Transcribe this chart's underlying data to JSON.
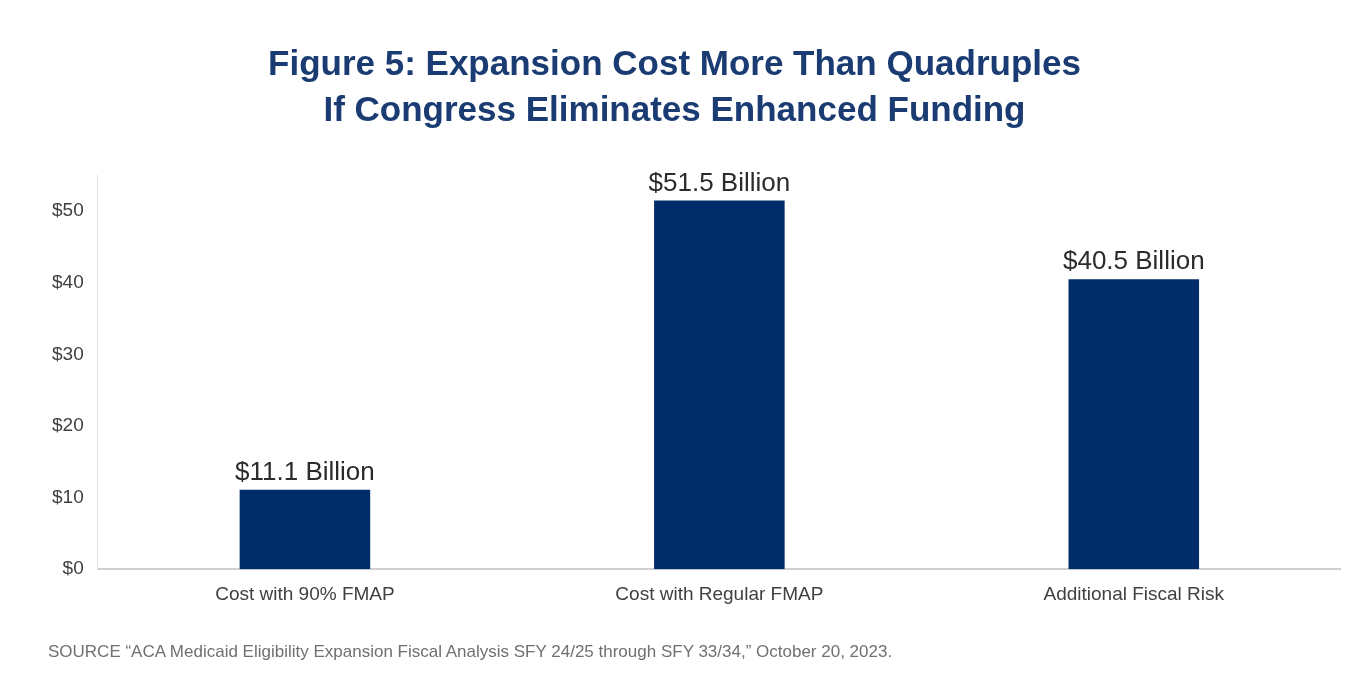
{
  "chart_data": {
    "type": "bar",
    "title": "Figure 5: Expansion Cost More Than Quadruples If Congress Eliminates Enhanced Funding",
    "categories": [
      "Cost with 90% FMAP",
      "Cost with Regular FMAP",
      "Additional Fiscal Risk"
    ],
    "values": [
      11.1,
      51.5,
      40.5
    ],
    "value_labels": [
      "$11.1 Billion",
      "$51.5 Billion",
      "$40.5 Billion"
    ],
    "color": "#002d6a",
    "ylim": [
      0,
      55
    ],
    "yticks": [
      {
        "value": 0,
        "label": "$0"
      },
      {
        "value": 10,
        "label": "$10"
      },
      {
        "value": 20,
        "label": "$20"
      },
      {
        "value": 30,
        "label": "$30"
      },
      {
        "value": 40,
        "label": "$40"
      },
      {
        "value": 50,
        "label": "$50"
      }
    ],
    "grid": false,
    "legend": false,
    "annotations": [
      "SOURCE “ACA Medicaid Eligibility Expansion Fiscal Analysis SFY 24/25 through SFY 33/34,” October 20, 2023."
    ]
  }
}
